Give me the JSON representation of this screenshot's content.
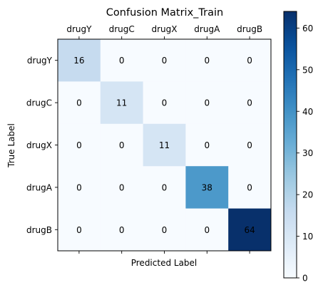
{
  "chart_data": {
    "type": "heatmap",
    "title": "Confusion Matrix_Train",
    "xlabel": "Predicted Label",
    "ylabel": "True Label",
    "x_categories": [
      "drugY",
      "drugC",
      "drugX",
      "drugA",
      "drugB"
    ],
    "y_categories": [
      "drugY",
      "drugC",
      "drugX",
      "drugA",
      "drugB"
    ],
    "values": [
      [
        16,
        0,
        0,
        0,
        0
      ],
      [
        0,
        11,
        0,
        0,
        0
      ],
      [
        0,
        0,
        11,
        0,
        0
      ],
      [
        0,
        0,
        0,
        38,
        0
      ],
      [
        0,
        0,
        0,
        0,
        64
      ]
    ],
    "colormap": "Blues",
    "colorbar": {
      "min": 0,
      "max": 64,
      "ticks": [
        0,
        10,
        20,
        30,
        40,
        50,
        60
      ]
    },
    "grid": false,
    "x_tick_position": "top"
  }
}
